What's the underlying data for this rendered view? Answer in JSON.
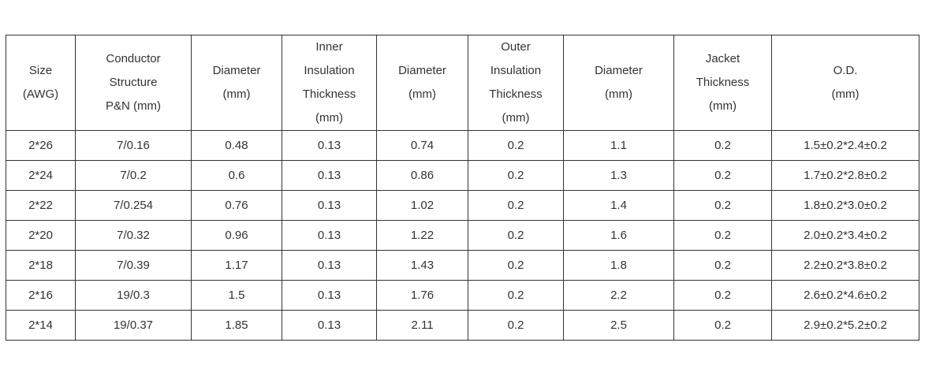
{
  "table": {
    "header": [
      [
        "Size",
        "(AWG)"
      ],
      [
        "Conductor",
        "Structure",
        "P&N  (mm)"
      ],
      [
        "Diameter",
        "(mm)"
      ],
      [
        "Inner",
        "Insulation",
        "Thickness",
        "(mm)"
      ],
      [
        "Diameter",
        "(mm)"
      ],
      [
        "Outer",
        "Insulation",
        "Thickness",
        "(mm)"
      ],
      [
        "Diameter",
        "(mm)"
      ],
      [
        "Jacket",
        "Thickness",
        "(mm)"
      ],
      [
        "O.D.",
        "(mm)"
      ]
    ],
    "rows": [
      [
        "2*26",
        "7/0.16",
        "0.48",
        "0.13",
        "0.74",
        "0.2",
        "1.1",
        "0.2",
        "1.5±0.2*2.4±0.2"
      ],
      [
        "2*24",
        "7/0.2",
        "0.6",
        "0.13",
        "0.86",
        "0.2",
        "1.3",
        "0.2",
        "1.7±0.2*2.8±0.2"
      ],
      [
        "2*22",
        "7/0.254",
        "0.76",
        "0.13",
        "1.02",
        "0.2",
        "1.4",
        "0.2",
        "1.8±0.2*3.0±0.2"
      ],
      [
        "2*20",
        "7/0.32",
        "0.96",
        "0.13",
        "1.22",
        "0.2",
        "1.6",
        "0.2",
        "2.0±0.2*3.4±0.2"
      ],
      [
        "2*18",
        "7/0.39",
        "1.17",
        "0.13",
        "1.43",
        "0.2",
        "1.8",
        "0.2",
        "2.2±0.2*3.8±0.2"
      ],
      [
        "2*16",
        "19/0.3",
        "1.5",
        "0.13",
        "1.76",
        "0.2",
        "2.2",
        "0.2",
        "2.6±0.2*4.6±0.2"
      ],
      [
        "2*14",
        "19/0.37",
        "1.85",
        "0.13",
        "2.11",
        "0.2",
        "2.5",
        "0.2",
        "2.9±0.2*5.2±0.2"
      ]
    ]
  }
}
